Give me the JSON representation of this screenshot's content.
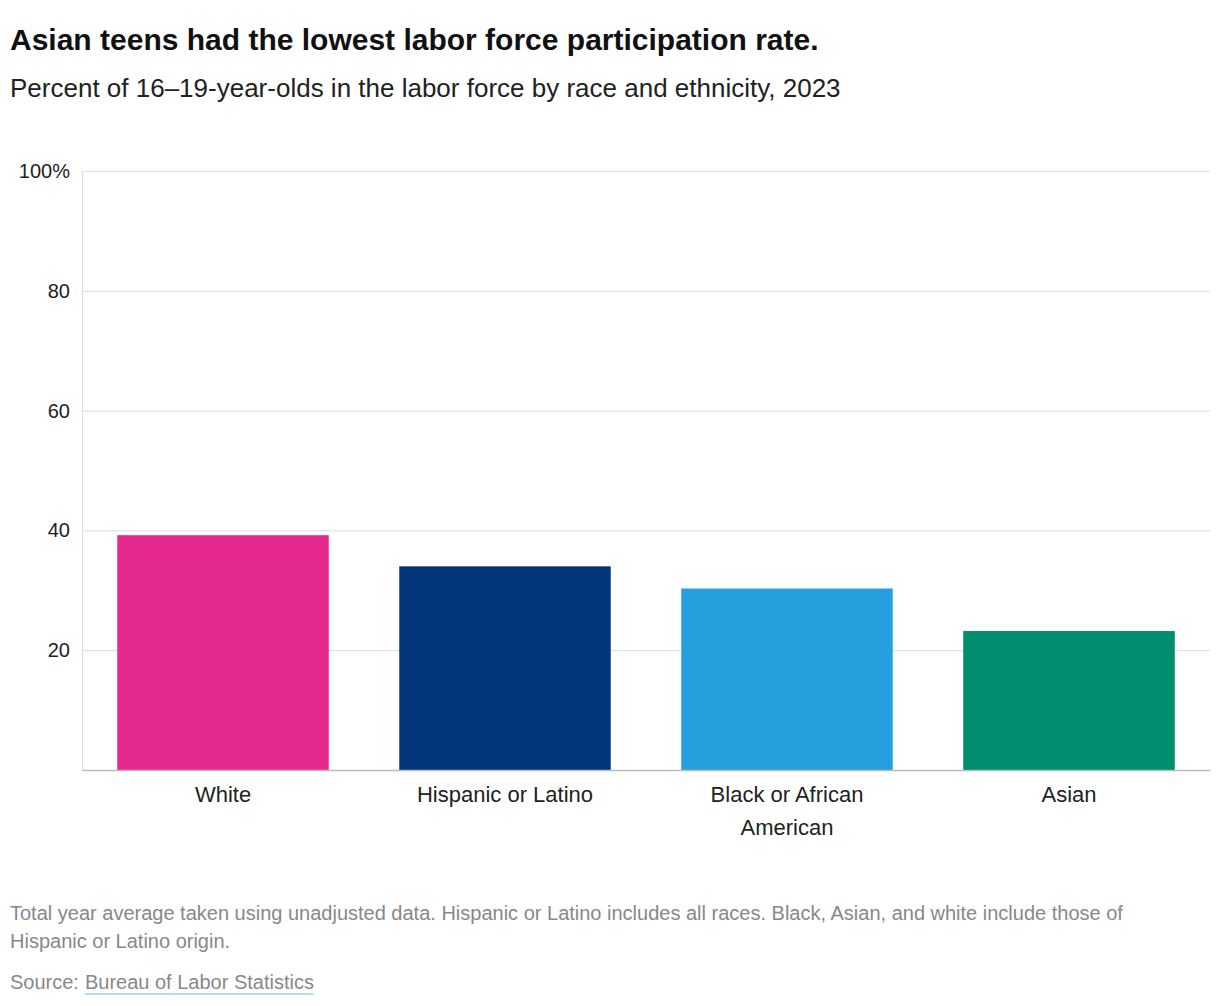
{
  "chart_data": {
    "type": "bar",
    "title": "Asian teens had the lowest labor force participation rate.",
    "subtitle": "Percent of 16–19-year-olds in the labor force by race and ethnicity, 2023",
    "categories": [
      "White",
      "Hispanic or Latino",
      "Black or African American",
      "Asian"
    ],
    "values": [
      39.2,
      34.0,
      30.3,
      23.2
    ],
    "colors": [
      "#e6298e",
      "#03357a",
      "#259fdd",
      "#008f6e"
    ],
    "ylim": [
      0,
      100
    ],
    "yticks": [
      20,
      40,
      60,
      80,
      {
        "value": 100,
        "label": "100%"
      }
    ],
    "grid": true,
    "note": "Total year average taken using unadjusted data. Hispanic or Latino includes all races. Black, Asian, and white include those of Hispanic or Latino origin.",
    "source_prefix": "Source:",
    "source": "Bureau of Labor Statistics"
  }
}
